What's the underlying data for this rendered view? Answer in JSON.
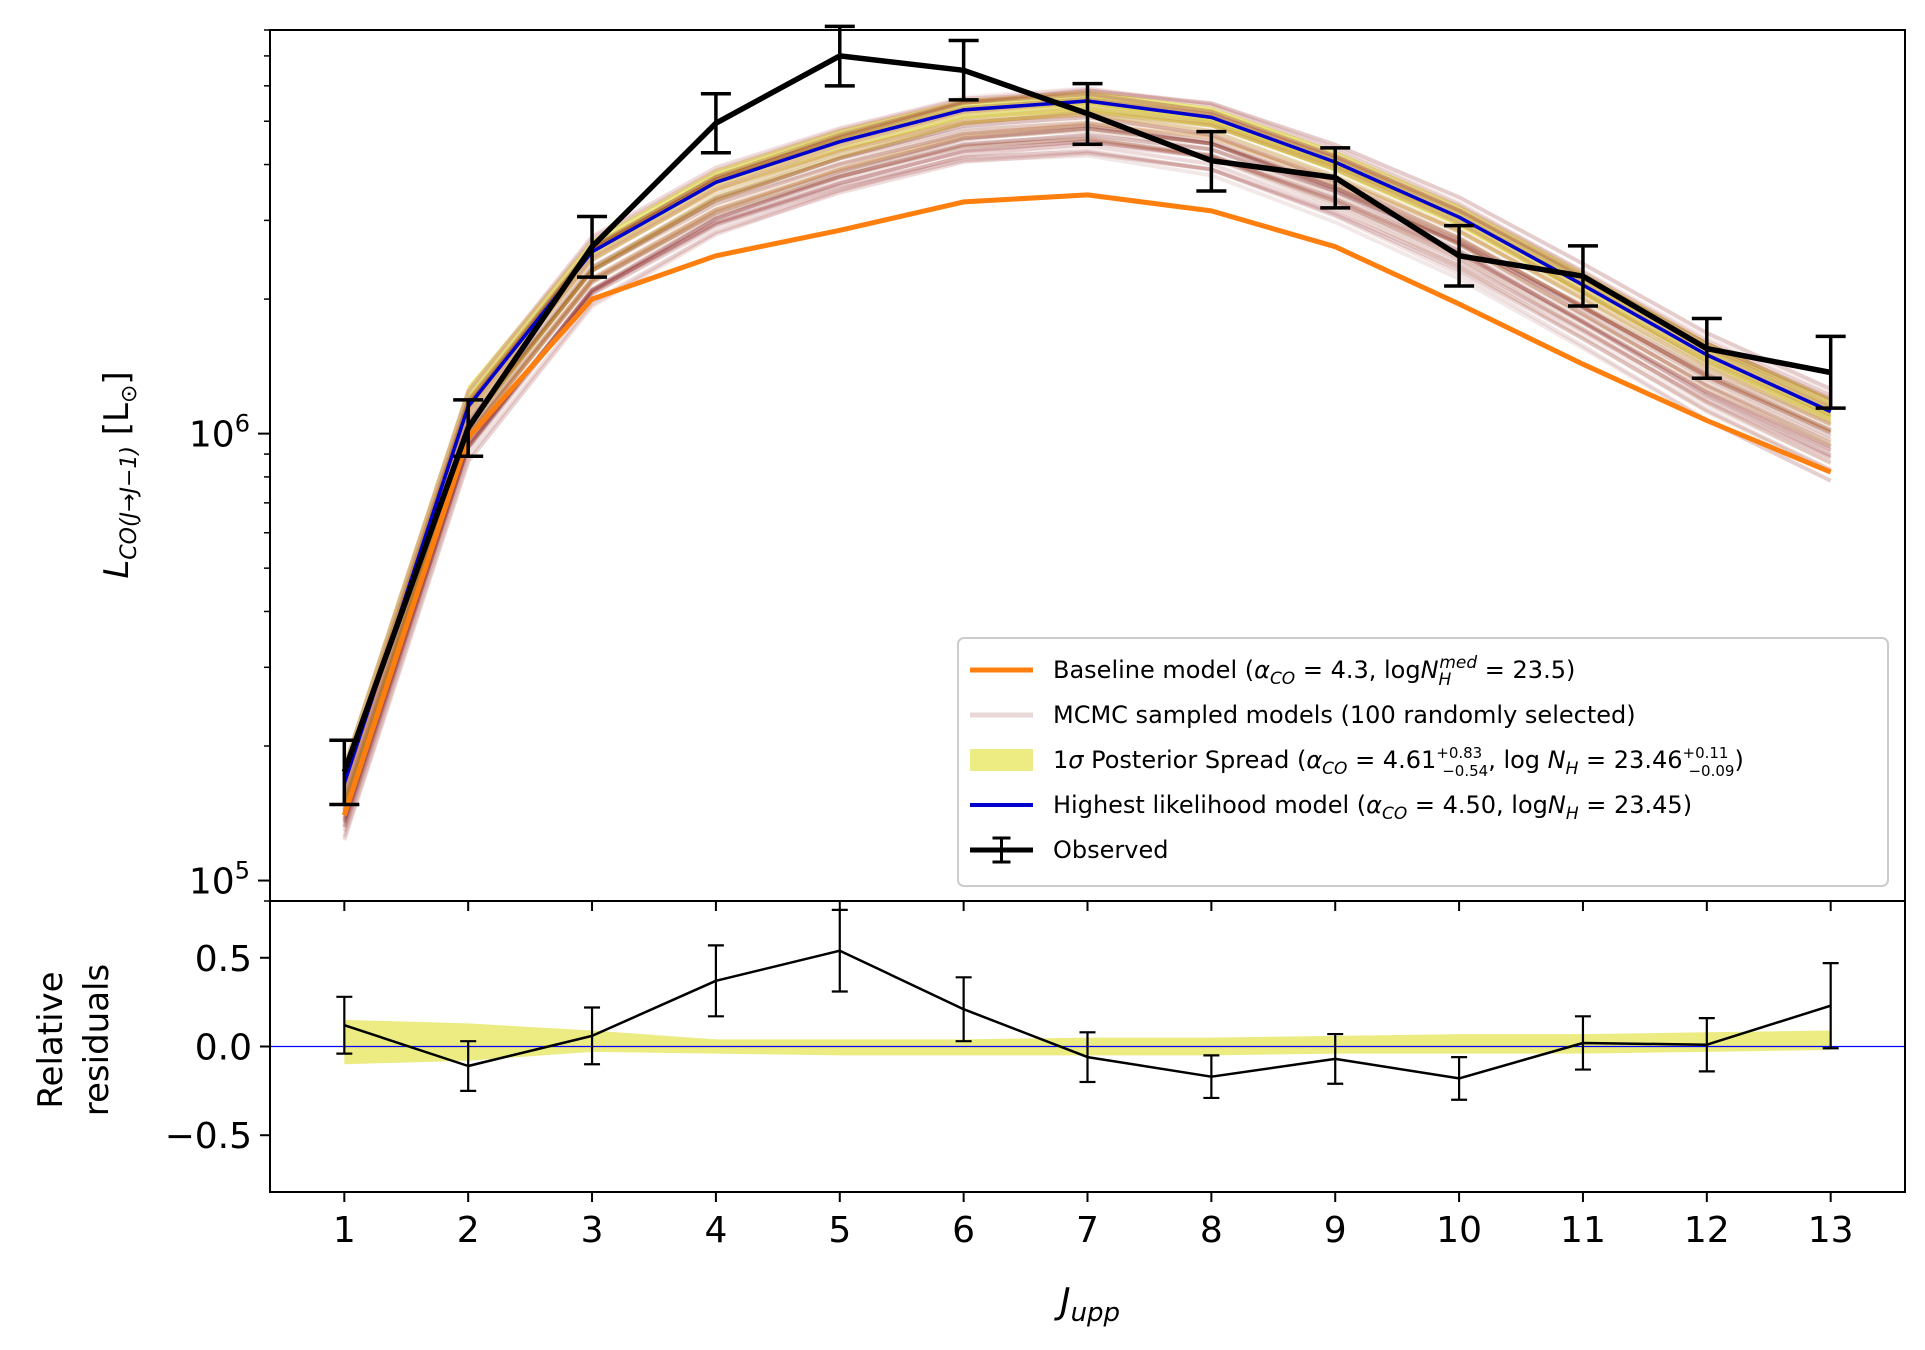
{
  "chart_data": [
    {
      "panel": "top",
      "type": "line",
      "xlabel": "J",
      "xlabel_sub": "upp",
      "ylabel": "L",
      "ylabel_sub": "CO(J→J−1)",
      "ylabel_unit": "[L",
      "ylabel_unit_sub": "⊙",
      "ylabel_unit_end": "]",
      "yscale": "log",
      "ylim": [
        90000,
        8000000
      ],
      "xlim": [
        0.4,
        13.6
      ],
      "x": [
        1,
        2,
        3,
        4,
        5,
        6,
        7,
        8,
        9,
        10,
        11,
        12,
        13
      ],
      "ytick_labels": [
        {
          "base": "10",
          "exp": "5",
          "value": 100000
        },
        {
          "base": "10",
          "exp": "6",
          "value": 1000000
        }
      ],
      "grid": false,
      "legend_position": "lower-right",
      "legend": [
        {
          "label": "Baseline model (αCO = 4.3, logN_H^med = 23.5)",
          "style": "orange-line"
        },
        {
          "label": "MCMC sampled models (100 randomly selected)",
          "style": "faint-line"
        },
        {
          "label": "1σ Posterior Spread (αCO = 4.61 +0.83/−0.54, log N_H = 23.46 +0.11/−0.09)",
          "style": "yellow-patch"
        },
        {
          "label": "Highest likelihood model (αCO = 4.50, logN_H = 23.45)",
          "style": "blue-line"
        },
        {
          "label": "Observed",
          "style": "black-errorbar"
        }
      ],
      "series": [
        {
          "name": "Baseline model",
          "color": "#ff7f0e",
          "values": [
            140000,
            980000,
            2000000,
            2500000,
            2850000,
            3300000,
            3420000,
            3150000,
            2620000,
            1950000,
            1430000,
            1070000,
            820000
          ]
        },
        {
          "name": "Highest likelihood model",
          "color": "#0000cc",
          "values": [
            165000,
            1150000,
            2550000,
            3650000,
            4500000,
            5300000,
            5550000,
            5100000,
            4050000,
            3050000,
            2150000,
            1500000,
            1120000
          ]
        },
        {
          "name": "Observed",
          "color": "#000000",
          "values": [
            175000,
            1030000,
            2620000,
            4950000,
            7000000,
            6500000,
            5200000,
            4080000,
            3740000,
            2500000,
            2250000,
            1550000,
            1370000
          ],
          "err_low": [
            27000,
            140000,
            380000,
            700000,
            1000000,
            920000,
            760000,
            590000,
            540000,
            360000,
            320000,
            220000,
            230000
          ],
          "err_high": [
            31000,
            160000,
            440000,
            810000,
            1150000,
            1080000,
            870000,
            660000,
            620000,
            420000,
            380000,
            260000,
            280000
          ]
        },
        {
          "name": "1σ Posterior Spread",
          "color": "#e6e65a",
          "lower": [
            155000,
            1080000,
            2420000,
            3480000,
            4280000,
            5050000,
            5250000,
            4850000,
            3850000,
            2900000,
            2040000,
            1430000,
            1060000
          ],
          "upper": [
            185000,
            1280000,
            2720000,
            3900000,
            4800000,
            5600000,
            5850000,
            5380000,
            4300000,
            3250000,
            2300000,
            1610000,
            1200000
          ]
        }
      ]
    },
    {
      "panel": "bottom",
      "type": "line",
      "xlabel": "J",
      "xlabel_sub": "upp",
      "ylabel": [
        "Relative",
        "residuals"
      ],
      "ylim": [
        -0.82,
        0.82
      ],
      "yticks": [
        -0.5,
        0.0,
        0.5
      ],
      "ytick_labels": [
        "−0.5",
        "0.0",
        "0.5"
      ],
      "x": [
        1,
        2,
        3,
        4,
        5,
        6,
        7,
        8,
        9,
        10,
        11,
        12,
        13
      ],
      "xtick_labels": [
        "1",
        "2",
        "3",
        "4",
        "5",
        "6",
        "7",
        "8",
        "9",
        "10",
        "11",
        "12",
        "13"
      ],
      "zero_line_color": "#0000ff",
      "series": [
        {
          "name": "Residuals",
          "color": "#000000",
          "values": [
            0.12,
            -0.11,
            0.06,
            0.37,
            0.54,
            0.21,
            -0.06,
            -0.17,
            -0.07,
            -0.18,
            0.02,
            0.01,
            0.23
          ],
          "err": [
            0.16,
            0.14,
            0.16,
            0.2,
            0.23,
            0.18,
            0.14,
            0.12,
            0.14,
            0.12,
            0.15,
            0.15,
            0.24
          ]
        },
        {
          "name": "1σ band",
          "color": "#e6e65a",
          "lower": [
            -0.1,
            -0.08,
            -0.03,
            -0.04,
            -0.05,
            -0.05,
            -0.05,
            -0.05,
            -0.04,
            -0.04,
            -0.04,
            -0.03,
            -0.02
          ],
          "upper": [
            0.15,
            0.13,
            0.09,
            0.04,
            0.04,
            0.04,
            0.05,
            0.05,
            0.06,
            0.07,
            0.07,
            0.08,
            0.09
          ]
        }
      ]
    }
  ]
}
